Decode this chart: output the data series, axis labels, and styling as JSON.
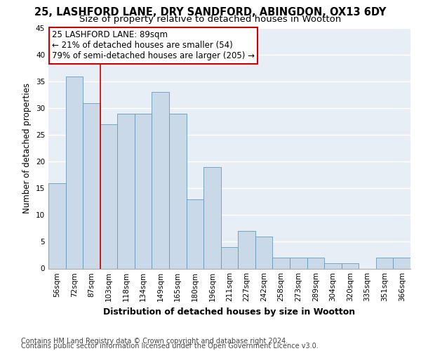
{
  "title1": "25, LASHFORD LANE, DRY SANDFORD, ABINGDON, OX13 6DY",
  "title2": "Size of property relative to detached houses in Wootton",
  "xlabel": "Distribution of detached houses by size in Wootton",
  "ylabel": "Number of detached properties",
  "categories": [
    "56sqm",
    "72sqm",
    "87sqm",
    "103sqm",
    "118sqm",
    "134sqm",
    "149sqm",
    "165sqm",
    "180sqm",
    "196sqm",
    "211sqm",
    "227sqm",
    "242sqm",
    "258sqm",
    "273sqm",
    "289sqm",
    "304sqm",
    "320sqm",
    "335sqm",
    "351sqm",
    "366sqm"
  ],
  "values": [
    16,
    36,
    31,
    27,
    29,
    29,
    33,
    29,
    13,
    19,
    4,
    7,
    6,
    2,
    2,
    2,
    1,
    1,
    0,
    2,
    2
  ],
  "bar_color": "#c9d9e8",
  "bar_edge_color": "#6699bb",
  "ylim": [
    0,
    45
  ],
  "yticks": [
    0,
    5,
    10,
    15,
    20,
    25,
    30,
    35,
    40,
    45
  ],
  "red_line_index": 2,
  "annotation_title": "25 LASHFORD LANE: 89sqm",
  "annotation_line1": "← 21% of detached houses are smaller (54)",
  "annotation_line2": "79% of semi-detached houses are larger (205) →",
  "annotation_box_color": "#ffffff",
  "annotation_box_edge_color": "#cc0000",
  "red_line_color": "#cc0000",
  "footer1": "Contains HM Land Registry data © Crown copyright and database right 2024.",
  "footer2": "Contains public sector information licensed under the Open Government Licence v3.0.",
  "bg_color": "#e8eef5",
  "grid_color": "#ffffff",
  "title1_fontsize": 10.5,
  "title2_fontsize": 9.5,
  "axis_label_fontsize": 8.5,
  "tick_fontsize": 7.5,
  "annotation_fontsize": 8.5,
  "footer_fontsize": 7.0
}
